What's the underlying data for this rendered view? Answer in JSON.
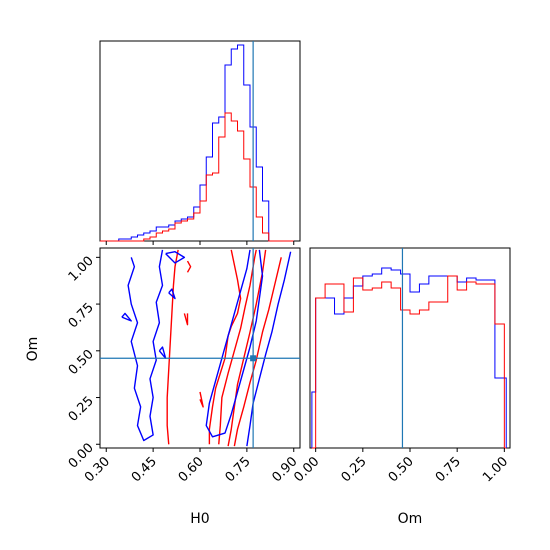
{
  "chart_data": {
    "type": "corner",
    "parameters": [
      "H0",
      "Om"
    ],
    "truth": {
      "H0": 0.77,
      "Om": 0.46
    },
    "colors": {
      "blue": "#0000ff",
      "red": "#ff0000",
      "truth": "#1f77b4"
    },
    "panels": [
      {
        "id": "hist-h0",
        "type": "histogram",
        "xlim": [
          0.28,
          0.92
        ],
        "ylim": [
          0,
          1
        ],
        "xticks": [
          0.3,
          0.45,
          0.6,
          0.75,
          0.9
        ],
        "show_tick_labels": false,
        "series": [
          {
            "color": "#0000ff",
            "edges": [
              0.28,
              0.3,
              0.32,
              0.34,
              0.36,
              0.38,
              0.4,
              0.42,
              0.44,
              0.46,
              0.48,
              0.5,
              0.52,
              0.54,
              0.56,
              0.58,
              0.6,
              0.62,
              0.64,
              0.66,
              0.68,
              0.7,
              0.72,
              0.74,
              0.76,
              0.78,
              0.8,
              0.82,
              0.84,
              0.86,
              0.88,
              0.9
            ],
            "values": [
              0,
              0,
              0,
              0.01,
              0.01,
              0.02,
              0.03,
              0.04,
              0.05,
              0.07,
              0.07,
              0.08,
              0.1,
              0.11,
              0.12,
              0.17,
              0.28,
              0.42,
              0.59,
              0.62,
              0.88,
              0.96,
              0.98,
              0.78,
              0.57,
              0.37,
              0.2,
              0,
              0,
              0,
              0
            ]
          },
          {
            "color": "#ff0000",
            "edges": [
              0.28,
              0.3,
              0.32,
              0.34,
              0.36,
              0.38,
              0.4,
              0.42,
              0.44,
              0.46,
              0.48,
              0.5,
              0.52,
              0.54,
              0.56,
              0.58,
              0.6,
              0.62,
              0.64,
              0.66,
              0.68,
              0.7,
              0.72,
              0.74,
              0.76,
              0.78,
              0.8,
              0.82,
              0.84,
              0.86,
              0.88,
              0.9
            ],
            "values": [
              0,
              0,
              0,
              0,
              0,
              0,
              0,
              0.01,
              0.02,
              0.04,
              0.05,
              0.06,
              0.09,
              0.1,
              0.11,
              0.14,
              0.2,
              0.33,
              0.34,
              0.52,
              0.64,
              0.6,
              0.55,
              0.41,
              0.27,
              0.12,
              0.04,
              0,
              0,
              0,
              0
            ]
          }
        ]
      },
      {
        "id": "scatter-h0-om",
        "type": "contour",
        "xlim": [
          0.28,
          0.92
        ],
        "ylim": [
          -0.02,
          1.05
        ],
        "xticks": [
          0.3,
          0.45,
          0.6,
          0.75,
          0.9
        ],
        "xtick_labels": [
          "0.30",
          "0.45",
          "0.60",
          "0.75",
          "0.90"
        ],
        "yticks": [
          0.0,
          0.25,
          0.5,
          0.75,
          1.0
        ],
        "ytick_labels": [
          "0.00",
          "0.25",
          "0.50",
          "0.75",
          "1.00"
        ],
        "xlabel": "H0",
        "ylabel": "Om",
        "contours": [
          {
            "color": "#ff0000",
            "points": [
              [
                0.71,
                -0.01
              ],
              [
                0.72,
                0.08
              ],
              [
                0.74,
                0.2
              ],
              [
                0.76,
                0.33
              ],
              [
                0.78,
                0.45
              ],
              [
                0.8,
                0.6
              ],
              [
                0.82,
                0.72
              ],
              [
                0.84,
                0.86
              ],
              [
                0.86,
                1.0
              ]
            ]
          },
          {
            "color": "#ff0000",
            "points": [
              [
                0.69,
                -0.01
              ],
              [
                0.7,
                0.08
              ],
              [
                0.71,
                0.2
              ],
              [
                0.72,
                0.32
              ],
              [
                0.74,
                0.46
              ],
              [
                0.76,
                0.6
              ],
              [
                0.78,
                0.75
              ],
              [
                0.8,
                0.92
              ],
              [
                0.81,
                1.04
              ]
            ]
          },
          {
            "color": "#ff0000",
            "points": [
              [
                0.66,
                0.0
              ],
              [
                0.665,
                0.1
              ],
              [
                0.67,
                0.25
              ],
              [
                0.69,
                0.38
              ],
              [
                0.71,
                0.5
              ],
              [
                0.73,
                0.62
              ],
              [
                0.745,
                0.74
              ],
              [
                0.76,
                0.85
              ],
              [
                0.775,
                1.0
              ],
              [
                0.78,
                1.04
              ]
            ]
          },
          {
            "color": "#ff0000",
            "points": [
              [
                0.7,
                1.04
              ],
              [
                0.72,
                0.88
              ],
              [
                0.73,
                0.78
              ],
              [
                0.72,
                0.7
              ],
              [
                0.7,
                0.63
              ],
              [
                0.69,
                0.58
              ],
              [
                0.68,
                0.46
              ],
              [
                0.665,
                0.38
              ],
              [
                0.65,
                0.3
              ],
              [
                0.64,
                0.2
              ],
              [
                0.63,
                0.08
              ],
              [
                0.63,
                0.0
              ]
            ]
          },
          {
            "color": "#ff0000",
            "points": [
              [
                0.53,
                1.04
              ],
              [
                0.52,
                0.95
              ],
              [
                0.515,
                0.85
              ],
              [
                0.51,
                0.7
              ],
              [
                0.505,
                0.55
              ],
              [
                0.5,
                0.4
              ],
              [
                0.495,
                0.25
              ],
              [
                0.495,
                0.1
              ],
              [
                0.5,
                0.0
              ]
            ]
          },
          {
            "color": "#ff0000",
            "points": [
              [
                0.56,
                0.98
              ],
              [
                0.57,
                0.95
              ],
              [
                0.56,
                0.92
              ]
            ]
          },
          {
            "color": "#ff0000",
            "points": [
              [
                0.55,
                0.7
              ],
              [
                0.56,
                0.64
              ],
              [
                0.56,
                0.7
              ]
            ]
          },
          {
            "color": "#ff0000",
            "points": [
              [
                0.6,
                0.28
              ],
              [
                0.61,
                0.2
              ],
              [
                0.6,
                0.24
              ]
            ]
          },
          {
            "color": "#0000ff",
            "points": [
              [
                0.75,
                -0.01
              ],
              [
                0.76,
                0.1
              ],
              [
                0.77,
                0.22
              ],
              [
                0.79,
                0.35
              ],
              [
                0.81,
                0.48
              ],
              [
                0.83,
                0.6
              ],
              [
                0.85,
                0.75
              ],
              [
                0.87,
                0.88
              ],
              [
                0.89,
                1.03
              ]
            ]
          },
          {
            "color": "#0000ff",
            "points": [
              [
                0.79,
                1.04
              ],
              [
                0.8,
                0.9
              ],
              [
                0.79,
                0.78
              ],
              [
                0.78,
                0.66
              ],
              [
                0.76,
                0.52
              ],
              [
                0.74,
                0.4
              ],
              [
                0.72,
                0.28
              ],
              [
                0.7,
                0.16
              ],
              [
                0.68,
                0.06
              ],
              [
                0.64,
                0.04
              ],
              [
                0.62,
                0.1
              ],
              [
                0.63,
                0.22
              ],
              [
                0.65,
                0.34
              ],
              [
                0.67,
                0.46
              ],
              [
                0.69,
                0.58
              ],
              [
                0.71,
                0.7
              ],
              [
                0.73,
                0.82
              ],
              [
                0.75,
                0.94
              ],
              [
                0.76,
                1.04
              ]
            ]
          },
          {
            "color": "#0000ff",
            "points": [
              [
                0.48,
                1.04
              ],
              [
                0.47,
                0.95
              ],
              [
                0.48,
                0.85
              ],
              [
                0.46,
                0.76
              ],
              [
                0.47,
                0.65
              ],
              [
                0.45,
                0.55
              ],
              [
                0.46,
                0.45
              ],
              [
                0.44,
                0.35
              ],
              [
                0.45,
                0.25
              ],
              [
                0.44,
                0.15
              ],
              [
                0.45,
                0.05
              ],
              [
                0.42,
                0.02
              ],
              [
                0.4,
                0.1
              ],
              [
                0.41,
                0.2
              ],
              [
                0.39,
                0.3
              ],
              [
                0.4,
                0.42
              ],
              [
                0.38,
                0.55
              ],
              [
                0.4,
                0.65
              ],
              [
                0.38,
                0.75
              ],
              [
                0.37,
                0.85
              ],
              [
                0.39,
                0.95
              ],
              [
                0.38,
                1.0
              ]
            ]
          },
          {
            "color": "#0000ff",
            "points": [
              [
                0.49,
                1.02
              ],
              [
                0.52,
                0.97
              ],
              [
                0.55,
                1.0
              ],
              [
                0.52,
                1.03
              ],
              [
                0.49,
                1.02
              ]
            ]
          },
          {
            "color": "#0000ff",
            "points": [
              [
                0.47,
                0.5
              ],
              [
                0.49,
                0.46
              ],
              [
                0.48,
                0.52
              ],
              [
                0.47,
                0.5
              ]
            ]
          },
          {
            "color": "#0000ff",
            "points": [
              [
                0.5,
                0.81
              ],
              [
                0.52,
                0.78
              ],
              [
                0.51,
                0.83
              ],
              [
                0.5,
                0.81
              ]
            ]
          },
          {
            "color": "#0000ff",
            "points": [
              [
                0.35,
                0.68
              ],
              [
                0.38,
                0.66
              ],
              [
                0.36,
                0.7
              ],
              [
                0.35,
                0.68
              ]
            ]
          }
        ]
      },
      {
        "id": "hist-om",
        "type": "histogram",
        "xlim": [
          -0.03,
          1.03
        ],
        "ylim": [
          0,
          1
        ],
        "xticks": [
          0.0,
          0.25,
          0.5,
          0.75,
          1.0
        ],
        "xtick_labels": [
          "0.00",
          "0.25",
          "0.50",
          "0.75",
          "1.00"
        ],
        "xlabel": "Om",
        "series": [
          {
            "color": "#0000ff",
            "edges": [
              -0.02,
              0.0,
              0.05,
              0.1,
              0.15,
              0.2,
              0.25,
              0.3,
              0.35,
              0.4,
              0.45,
              0.5,
              0.55,
              0.6,
              0.65,
              0.7,
              0.75,
              0.8,
              0.85,
              0.9,
              0.95,
              1.0,
              1.01
            ],
            "values": [
              0.28,
              0.75,
              0.75,
              0.67,
              0.75,
              0.81,
              0.86,
              0.87,
              0.9,
              0.89,
              0.87,
              0.78,
              0.82,
              0.86,
              0.86,
              0.86,
              0.83,
              0.85,
              0.84,
              0.84,
              0.35,
              0.35
            ]
          },
          {
            "color": "#ff0000",
            "edges": [
              -0.02,
              0.0,
              0.05,
              0.1,
              0.15,
              0.2,
              0.25,
              0.3,
              0.35,
              0.4,
              0.45,
              0.5,
              0.55,
              0.6,
              0.65,
              0.7,
              0.75,
              0.8,
              0.85,
              0.9,
              0.95,
              1.0,
              1.01
            ],
            "values": [
              0.0,
              0.75,
              0.82,
              0.82,
              0.68,
              0.85,
              0.79,
              0.8,
              0.83,
              0.8,
              0.69,
              0.67,
              0.69,
              0.73,
              0.73,
              0.86,
              0.79,
              0.83,
              0.82,
              0.82,
              0.62,
              0.0
            ]
          }
        ]
      }
    ]
  }
}
